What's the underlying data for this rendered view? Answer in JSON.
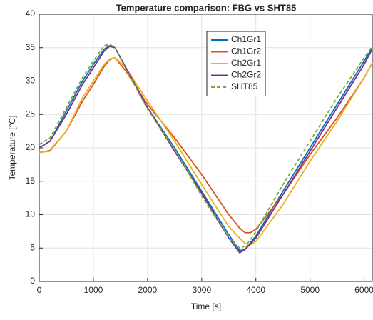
{
  "chart_data": {
    "type": "line",
    "title": "Temperature comparison: FBG vs SHT85",
    "x_label": "Time [s]",
    "y_label": "Temperature [°C]",
    "x": [
      0,
      200,
      500,
      800,
      1000,
      1200,
      1300,
      1400,
      1600,
      2000,
      2500,
      3000,
      3500,
      3700,
      3800,
      3900,
      4000,
      4500,
      5000,
      5500,
      6000,
      6150
    ],
    "series": [
      {
        "name": "Ch1Gr1",
        "color": "#0072bd",
        "dash": false,
        "values": [
          20,
          21,
          25.5,
          30,
          32.5,
          34.8,
          35.3,
          35,
          32,
          26,
          20,
          13.5,
          7,
          4.6,
          4.8,
          5.8,
          6.8,
          13.5,
          20,
          26.5,
          33,
          35
        ]
      },
      {
        "name": "Ch1Gr2",
        "color": "#d95319",
        "dash": false,
        "values": [
          19.3,
          19.6,
          22.5,
          27,
          29.5,
          32.2,
          33.2,
          33.5,
          31.5,
          26.5,
          21.5,
          16,
          10,
          8,
          7.3,
          7.3,
          7.8,
          13,
          19,
          24.5,
          30.5,
          32.7
        ]
      },
      {
        "name": "Ch2Gr1",
        "color": "#edb120",
        "dash": false,
        "values": [
          19.3,
          19.5,
          22.5,
          27.5,
          30,
          32.5,
          33.3,
          33.5,
          32,
          27,
          21,
          14.5,
          8.2,
          6.5,
          5.7,
          5.5,
          6,
          11.5,
          18,
          24,
          30.5,
          32.7
        ]
      },
      {
        "name": "Ch2Gr2",
        "color": "#7e2f8e",
        "dash": false,
        "values": [
          20,
          21,
          25,
          29.5,
          32,
          34.5,
          35.2,
          35,
          32,
          26,
          19.5,
          13.2,
          6.5,
          4.3,
          4.8,
          5.6,
          6.5,
          13,
          19.5,
          26,
          32.5,
          34.8
        ]
      },
      {
        "name": "SHT85",
        "color": "#77ac30",
        "dash": true,
        "values": [
          20.5,
          21.5,
          26,
          30.5,
          33,
          35.3,
          35.5,
          35,
          31.8,
          25.8,
          19.8,
          12.8,
          6.5,
          5,
          5.3,
          6.2,
          7.5,
          14.5,
          21,
          27.5,
          33.5,
          35.2
        ]
      }
    ],
    "xlim": [
      0,
      6150
    ],
    "ylim": [
      0,
      40
    ],
    "xticks": [
      0,
      1000,
      2000,
      3000,
      4000,
      5000,
      6000
    ],
    "yticks": [
      0,
      5,
      10,
      15,
      20,
      25,
      30,
      35,
      40
    ],
    "grid": true,
    "legend": "top-right"
  }
}
